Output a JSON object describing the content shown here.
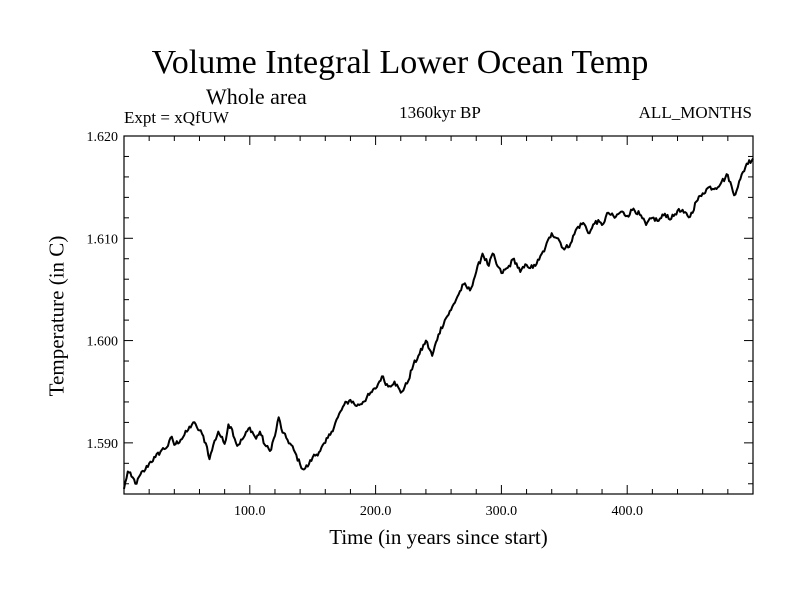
{
  "chart_data": {
    "type": "line",
    "title": "Volume Integral Lower Ocean Temp",
    "subtitle": "Whole area",
    "header_left": "Expt = xQfUW",
    "header_center": "1360kyr BP",
    "header_right": "ALL_MONTHS",
    "xlabel": "Time (in years since start)",
    "ylabel": "Temperature (in C)",
    "xlim": [
      0,
      500
    ],
    "ylim": [
      1.585,
      1.62
    ],
    "x_ticks": [
      100,
      200,
      300,
      400
    ],
    "x_tick_labels": [
      "100.0",
      "200.0",
      "300.0",
      "400.0"
    ],
    "y_ticks": [
      1.59,
      1.6,
      1.61,
      1.62
    ],
    "y_tick_labels": [
      "1.590",
      "1.600",
      "1.610",
      "1.620"
    ],
    "series": [
      {
        "name": "Volume Integral Lower Ocean Temp",
        "color": "#000000",
        "x": [
          0,
          3,
          6,
          10,
          13,
          17,
          20,
          25,
          30,
          35,
          38,
          40,
          45,
          50,
          55,
          58,
          62,
          66,
          68,
          71,
          75,
          80,
          83,
          86,
          90,
          95,
          100,
          105,
          108,
          112,
          116,
          120,
          123,
          126,
          130,
          135,
          140,
          143,
          147,
          150,
          155,
          160,
          165,
          170,
          175,
          180,
          185,
          190,
          195,
          200,
          205,
          210,
          215,
          220,
          225,
          230,
          235,
          240,
          245,
          250,
          255,
          260,
          265,
          270,
          275,
          280,
          285,
          290,
          293,
          296,
          300,
          305,
          310,
          315,
          320,
          325,
          330,
          335,
          340,
          345,
          350,
          355,
          360,
          365,
          370,
          375,
          380,
          385,
          390,
          395,
          400,
          405,
          410,
          415,
          420,
          425,
          430,
          435,
          440,
          445,
          450,
          455,
          460,
          465,
          470,
          475,
          480,
          485,
          490,
          495,
          500
        ],
        "y": [
          1.5855,
          1.5872,
          1.5867,
          1.586,
          1.5869,
          1.5874,
          1.588,
          1.5886,
          1.5893,
          1.5897,
          1.5906,
          1.5898,
          1.5903,
          1.5911,
          1.592,
          1.5915,
          1.5909,
          1.5896,
          1.5884,
          1.5898,
          1.5911,
          1.5899,
          1.5918,
          1.5913,
          1.5897,
          1.5905,
          1.5915,
          1.5904,
          1.5911,
          1.5898,
          1.5892,
          1.5907,
          1.5925,
          1.591,
          1.5903,
          1.5893,
          1.5879,
          1.5874,
          1.5879,
          1.5886,
          1.5891,
          1.59,
          1.5911,
          1.5925,
          1.5937,
          1.5942,
          1.5936,
          1.594,
          1.5947,
          1.5953,
          1.5965,
          1.5955,
          1.596,
          1.5949,
          1.5958,
          1.5976,
          1.5987,
          1.6,
          1.5985,
          1.6006,
          1.602,
          1.603,
          1.6043,
          1.6055,
          1.6049,
          1.6067,
          1.6085,
          1.6073,
          1.6085,
          1.6075,
          1.6066,
          1.6071,
          1.608,
          1.6067,
          1.6074,
          1.6071,
          1.6079,
          1.6091,
          1.6105,
          1.61,
          1.6089,
          1.6095,
          1.611,
          1.6115,
          1.6105,
          1.6117,
          1.6113,
          1.6125,
          1.612,
          1.6126,
          1.6122,
          1.6129,
          1.6123,
          1.6113,
          1.612,
          1.6117,
          1.6124,
          1.6119,
          1.6127,
          1.6125,
          1.6121,
          1.6136,
          1.6144,
          1.615,
          1.6149,
          1.6155,
          1.6162,
          1.6142,
          1.6158,
          1.6173,
          1.6178
        ]
      }
    ]
  }
}
